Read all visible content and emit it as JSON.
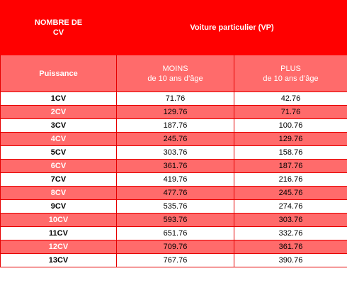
{
  "header": {
    "col1_line1": "NOMBRE DE",
    "col1_line2": "CV",
    "group_title": "Voiture particulier (VP)"
  },
  "subheader": {
    "col1": "Puissance",
    "col2_line1": "MOINS",
    "col2_line2": "de 10 ans d’âge",
    "col3_line1": "PLUS",
    "col3_line2": "de 10 ans d’âge"
  },
  "rows": [
    {
      "cv": "1CV",
      "moins": "71.76",
      "plus": "42.76"
    },
    {
      "cv": "2CV",
      "moins": "129.76",
      "plus": "71.76"
    },
    {
      "cv": "3CV",
      "moins": "187.76",
      "plus": "100.76"
    },
    {
      "cv": "4CV",
      "moins": "245.76",
      "plus": "129.76"
    },
    {
      "cv": "5CV",
      "moins": "303.76",
      "plus": "158.76"
    },
    {
      "cv": "6CV",
      "moins": "361.76",
      "plus": "187.76"
    },
    {
      "cv": "7CV",
      "moins": "419.76",
      "plus": "216.76"
    },
    {
      "cv": "8CV",
      "moins": "477.76",
      "plus": "245.76"
    },
    {
      "cv": "9CV",
      "moins": "535.76",
      "plus": "274.76"
    },
    {
      "cv": "10CV",
      "moins": "593.76",
      "plus": "303.76"
    },
    {
      "cv": "11CV",
      "moins": "651.76",
      "plus": "332.76"
    },
    {
      "cv": "12CV",
      "moins": "709.76",
      "plus": "361.76"
    },
    {
      "cv": "13CV",
      "moins": "767.76",
      "plus": "390.76"
    }
  ],
  "colors": {
    "header_bg": "#ff0000",
    "subheader_bg": "#ff6b6b",
    "stripe_bg": "#ff6b6b",
    "border": "#e60000"
  }
}
